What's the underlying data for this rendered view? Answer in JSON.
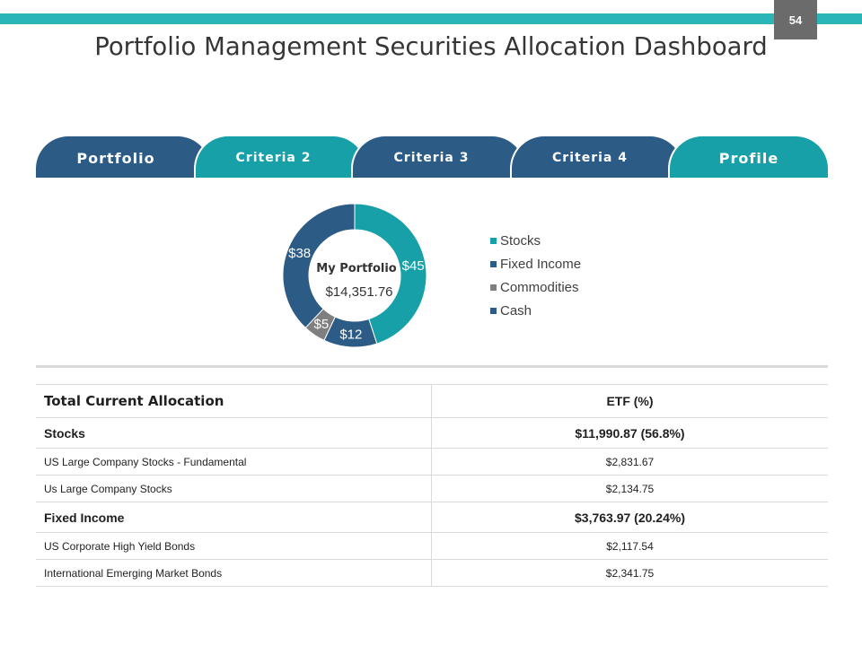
{
  "slide_number": "54",
  "title": "Portfolio Management Securities Allocation Dashboard",
  "theme": {
    "accent_bar": "#2bb5b8",
    "badge": "#6b6b6b",
    "teal": "#17a0a8",
    "navy": "#2c5b85"
  },
  "tabs": [
    {
      "label": "Portfolio",
      "color": "#2c5b85"
    },
    {
      "label": "Criteria 2",
      "color": "#17a0a8"
    },
    {
      "label": "Criteria 3",
      "color": "#2c5b85"
    },
    {
      "label": "Criteria 4",
      "color": "#2c5b85"
    },
    {
      "label": "Profile",
      "color": "#17a0a8"
    }
  ],
  "chart_data": {
    "type": "pie",
    "donut": true,
    "center_title": "My Portfolio",
    "center_value": "$14,351.76",
    "categories": [
      "Stocks",
      "Fixed Income",
      "Commodities",
      "Cash"
    ],
    "values": [
      45,
      12,
      5,
      38
    ],
    "data_labels": [
      "$45",
      "$12",
      "$5",
      "$38"
    ],
    "colors": [
      "#17a0a8",
      "#2c5b85",
      "#7f7f7f",
      "#2c5b85"
    ]
  },
  "table": {
    "headers": [
      "Total Current Allocation",
      "ETF (%)"
    ],
    "rows": [
      {
        "label": "Stocks",
        "value": "$11,990.87 (56.8%)"
      },
      {
        "label": "US Large Company Stocks - Fundamental",
        "value": "$2,831.67"
      },
      {
        "label": "Us Large Company Stocks",
        "value": "$2,134.75"
      },
      {
        "label": "Fixed Income",
        "value": "$3,763.97 (20.24%)"
      },
      {
        "label": "US Corporate High Yield Bonds",
        "value": "$2,117.54"
      },
      {
        "label": "International Emerging Market Bonds",
        "value": "$2,341.75"
      }
    ]
  }
}
